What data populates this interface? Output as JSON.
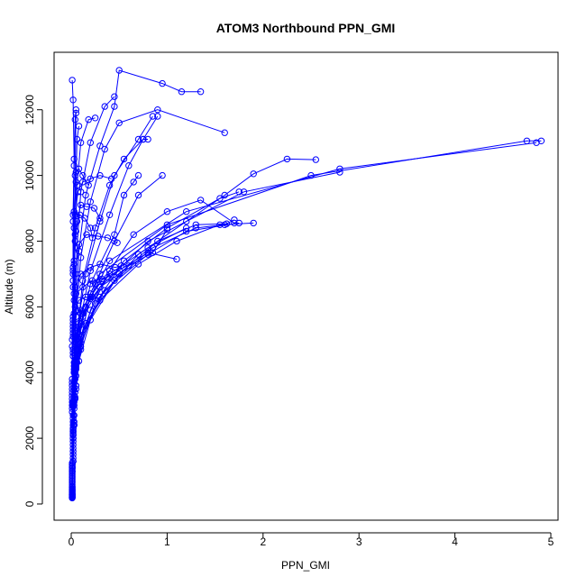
{
  "chart_data": {
    "type": "line",
    "title": "ATOM3 Northbound PPN_GMI",
    "xlabel": "PPN_GMI",
    "ylabel": "Altitude (m)",
    "xlim": [
      0,
      5
    ],
    "ylim": [
      0,
      13200
    ],
    "x_ticks": [
      "0",
      "1",
      "2",
      "3",
      "4",
      "5"
    ],
    "y_ticks": [
      "0",
      "2000",
      "4000",
      "6000",
      "8000",
      "10000",
      "12000"
    ],
    "grid": false,
    "legend": "none",
    "marker": "open-circle",
    "color": "#0000ff",
    "series": [
      {
        "x": [
          0.01,
          0.01,
          0.02,
          0.02,
          0.03,
          0.05,
          0.08,
          0.1,
          0.2,
          0.32
        ],
        "y": [
          200,
          1000,
          2000,
          3000,
          4000,
          5000,
          5500,
          5900,
          6300,
          6800
        ]
      },
      {
        "x": [
          0.01,
          0.01,
          0.02,
          0.02,
          0.03,
          0.06,
          0.12,
          0.3,
          0.45,
          0.6,
          0.85,
          1.0
        ],
        "y": [
          200,
          1100,
          2100,
          3100,
          4000,
          5000,
          5700,
          6600,
          6900,
          7250,
          7650,
          8350
        ]
      },
      {
        "x": [
          0.01,
          0.01,
          0.02,
          0.02,
          0.03,
          0.05,
          0.1,
          0.25,
          0.55,
          0.8,
          1.1
        ],
        "y": [
          180,
          1000,
          2000,
          3000,
          4100,
          5100,
          5800,
          6700,
          7200,
          7650,
          7450
        ]
      },
      {
        "x": [
          0.01,
          0.01,
          0.02,
          0.03,
          0.04,
          0.07,
          0.15,
          0.4,
          0.8,
          1.2
        ],
        "y": [
          250,
          1200,
          2200,
          3200,
          4200,
          5200,
          6000,
          7000,
          7800,
          8400
        ]
      },
      {
        "x": [
          0.01,
          0.01,
          0.02,
          0.03,
          0.05,
          0.1,
          0.3,
          0.7,
          1.1,
          1.55,
          1.9
        ],
        "y": [
          200,
          1100,
          2100,
          3100,
          4100,
          5100,
          6200,
          7300,
          8000,
          8500,
          8550
        ]
      },
      {
        "x": [
          0.01,
          0.01,
          0.02,
          0.03,
          0.05,
          0.12,
          0.35,
          0.8,
          1.2,
          1.75
        ],
        "y": [
          220,
          1150,
          2150,
          3150,
          4150,
          5300,
          6500,
          7600,
          8300,
          8550
        ]
      },
      {
        "x": [
          0.01,
          0.02,
          0.02,
          0.03,
          0.06,
          0.15,
          0.45,
          0.85,
          1.3,
          1.6,
          1.7
        ],
        "y": [
          300,
          1300,
          2300,
          3300,
          4300,
          5500,
          6800,
          7800,
          8400,
          8500,
          8650
        ]
      },
      {
        "x": [
          0.01,
          0.01,
          0.02,
          0.04,
          0.08,
          0.2,
          0.5,
          0.9,
          1.3,
          1.62
        ],
        "y": [
          260,
          1250,
          2250,
          3250,
          4350,
          5600,
          7000,
          8000,
          8500,
          8530
        ]
      },
      {
        "x": [
          0.01,
          0.02,
          0.03,
          0.05,
          0.1,
          0.2,
          0.4,
          0.65,
          1.0,
          1.35,
          1.7
        ],
        "y": [
          300,
          1400,
          2500,
          3600,
          4700,
          5900,
          7100,
          8200,
          8900,
          9250,
          8550
        ]
      },
      {
        "x": [
          0.01,
          0.02,
          0.03,
          0.05,
          0.1,
          0.25,
          0.55,
          1.0,
          1.55,
          1.75
        ],
        "y": [
          240,
          1300,
          2400,
          3500,
          4800,
          6100,
          7400,
          8400,
          9300,
          9500
        ]
      },
      {
        "x": [
          0.01,
          0.02,
          0.03,
          0.05,
          0.1,
          0.3,
          0.7,
          1.2,
          1.6,
          1.9,
          2.25,
          2.55
        ],
        "y": [
          280,
          1300,
          2400,
          3600,
          4900,
          6300,
          7600,
          8600,
          9400,
          10050,
          10500,
          10480
        ]
      },
      {
        "x": [
          0.01,
          0.02,
          0.03,
          0.05,
          0.1,
          0.3,
          0.8,
          1.8,
          2.8
        ],
        "y": [
          300,
          1500,
          2700,
          3900,
          5100,
          6600,
          8000,
          9500,
          10100
        ]
      },
      {
        "x": [
          0.01,
          0.02,
          0.03,
          0.05,
          0.1,
          0.3,
          1.0,
          2.5,
          4.75,
          4.9
        ],
        "y": [
          320,
          1600,
          2900,
          4200,
          5500,
          7000,
          8500,
          10000,
          11050,
          11050
        ]
      },
      {
        "x": [
          0.01,
          0.02,
          0.03,
          0.05,
          0.12,
          0.4,
          1.2,
          2.8,
          4.85
        ],
        "y": [
          350,
          1700,
          3000,
          4400,
          5800,
          7400,
          8900,
          10200,
          11000
        ]
      },
      {
        "x": [
          0.01,
          0.02,
          0.04,
          0.08,
          0.2,
          0.45,
          0.7,
          0.95
        ],
        "y": [
          400,
          1800,
          3200,
          4700,
          6400,
          8000,
          9400,
          10000
        ]
      },
      {
        "x": [
          0.01,
          0.02,
          0.04,
          0.08,
          0.2,
          0.45,
          0.55,
          0.65,
          0.7
        ],
        "y": [
          380,
          1900,
          3400,
          5000,
          6700,
          8200,
          9400,
          9800,
          10000
        ]
      },
      {
        "x": [
          0.01,
          0.02,
          0.03,
          0.06,
          0.12,
          0.25,
          0.4,
          0.55,
          0.75,
          0.9
        ],
        "y": [
          450,
          2000,
          3500,
          5100,
          6800,
          8400,
          9700,
          10500,
          11100,
          11800
        ]
      },
      {
        "x": [
          0.01,
          0.02,
          0.03,
          0.06,
          0.15,
          0.3,
          0.45,
          0.7,
          0.85
        ],
        "y": [
          420,
          2100,
          3700,
          5300,
          7000,
          8600,
          10000,
          11100,
          11800
        ]
      },
      {
        "x": [
          0.01,
          0.02,
          0.04,
          0.08,
          0.2,
          0.4,
          0.6,
          0.75,
          0.8
        ],
        "y": [
          460,
          2200,
          3800,
          5400,
          7100,
          8800,
          10300,
          11100,
          11100
        ]
      },
      {
        "x": [
          0.01,
          0.02,
          0.03,
          0.05,
          0.1,
          0.2,
          0.35,
          0.5,
          0.9,
          1.6
        ],
        "y": [
          500,
          2300,
          4000,
          5700,
          7500,
          9200,
          10800,
          11600,
          12000,
          11300
        ]
      },
      {
        "x": [
          0.01,
          0.02,
          0.03,
          0.05,
          0.08,
          0.15,
          0.3,
          0.45,
          0.5,
          0.95,
          1.15,
          1.35
        ],
        "y": [
          520,
          2400,
          4200,
          5900,
          7700,
          9400,
          10900,
          12100,
          13200,
          12800,
          12550,
          12550
        ]
      },
      {
        "x": [
          0.01,
          0.02,
          0.03,
          0.04,
          0.06,
          0.1,
          0.2,
          0.35,
          0.45
        ],
        "y": [
          550,
          2500,
          4300,
          6000,
          7800,
          9500,
          11000,
          12100,
          12400
        ]
      },
      {
        "x": [
          0.01,
          0.02,
          0.02,
          0.03,
          0.04,
          0.06,
          0.1,
          0.18,
          0.25
        ],
        "y": [
          600,
          2600,
          4500,
          6200,
          8000,
          9700,
          11000,
          11700,
          11750
        ]
      },
      {
        "x": [
          0.01,
          0.02,
          0.02,
          0.03,
          0.04,
          0.05,
          0.06,
          0.08
        ],
        "y": [
          650,
          2700,
          4600,
          6400,
          8200,
          9800,
          11100,
          11500
        ]
      },
      {
        "x": [
          0.01,
          0.01,
          0.02,
          0.02,
          0.03,
          0.04,
          0.05
        ],
        "y": [
          700,
          2800,
          4700,
          6600,
          8400,
          10000,
          11900
        ]
      },
      {
        "x": [
          0.01,
          0.01,
          0.01,
          0.02,
          0.02,
          0.03,
          0.04,
          0.05
        ],
        "y": [
          750,
          2900,
          4800,
          6800,
          8600,
          10300,
          11700,
          12000
        ]
      },
      {
        "x": [
          0.01,
          0.01,
          0.01,
          0.02,
          0.02,
          0.03,
          0.02,
          0.01
        ],
        "y": [
          800,
          3000,
          5000,
          7000,
          8800,
          10500,
          12300,
          12900
        ]
      },
      {
        "x": [
          0.01,
          0.01,
          0.02,
          0.02,
          0.03,
          0.05,
          0.08,
          0.12,
          0.18
        ],
        "y": [
          850,
          3100,
          5100,
          7100,
          8900,
          10100,
          10200,
          10000,
          9700
        ]
      },
      {
        "x": [
          0.01,
          0.01,
          0.02,
          0.02,
          0.04,
          0.07,
          0.12,
          0.2,
          0.3,
          0.42
        ],
        "y": [
          900,
          3200,
          5200,
          7200,
          8800,
          9500,
          9800,
          9900,
          10000,
          9900
        ]
      },
      {
        "x": [
          0.01,
          0.01,
          0.02,
          0.03,
          0.06,
          0.1,
          0.16,
          0.24,
          0.3
        ],
        "y": [
          950,
          3300,
          5300,
          7300,
          8600,
          9100,
          9050,
          9000,
          8700
        ]
      },
      {
        "x": [
          0.01,
          0.01,
          0.02,
          0.03,
          0.05,
          0.09,
          0.14,
          0.2,
          0.22
        ],
        "y": [
          1000,
          3400,
          5400,
          7400,
          8300,
          8800,
          8700,
          8400,
          8100
        ]
      },
      {
        "x": [
          0.01,
          0.01,
          0.02,
          0.04,
          0.08,
          0.16,
          0.28,
          0.38,
          0.48
        ],
        "y": [
          1050,
          3500,
          5500,
          7000,
          7900,
          8200,
          8150,
          8100,
          7950
        ]
      },
      {
        "x": [
          0.01,
          0.01,
          0.02,
          0.04,
          0.1,
          0.2,
          0.3,
          0.46,
          0.52
        ],
        "y": [
          1100,
          3600,
          5600,
          6600,
          7000,
          7200,
          7300,
          7200,
          7250
        ]
      },
      {
        "x": [
          0.01,
          0.01,
          0.02,
          0.05,
          0.12,
          0.22,
          0.32,
          0.38
        ],
        "y": [
          1150,
          3700,
          5700,
          6400,
          6600,
          6800,
          6850,
          6900
        ]
      },
      {
        "x": [
          0.01,
          0.01,
          0.03,
          0.08,
          0.15,
          0.2,
          0.22
        ],
        "y": [
          1200,
          3800,
          5800,
          6200,
          6300,
          6250,
          6300
        ]
      }
    ]
  }
}
